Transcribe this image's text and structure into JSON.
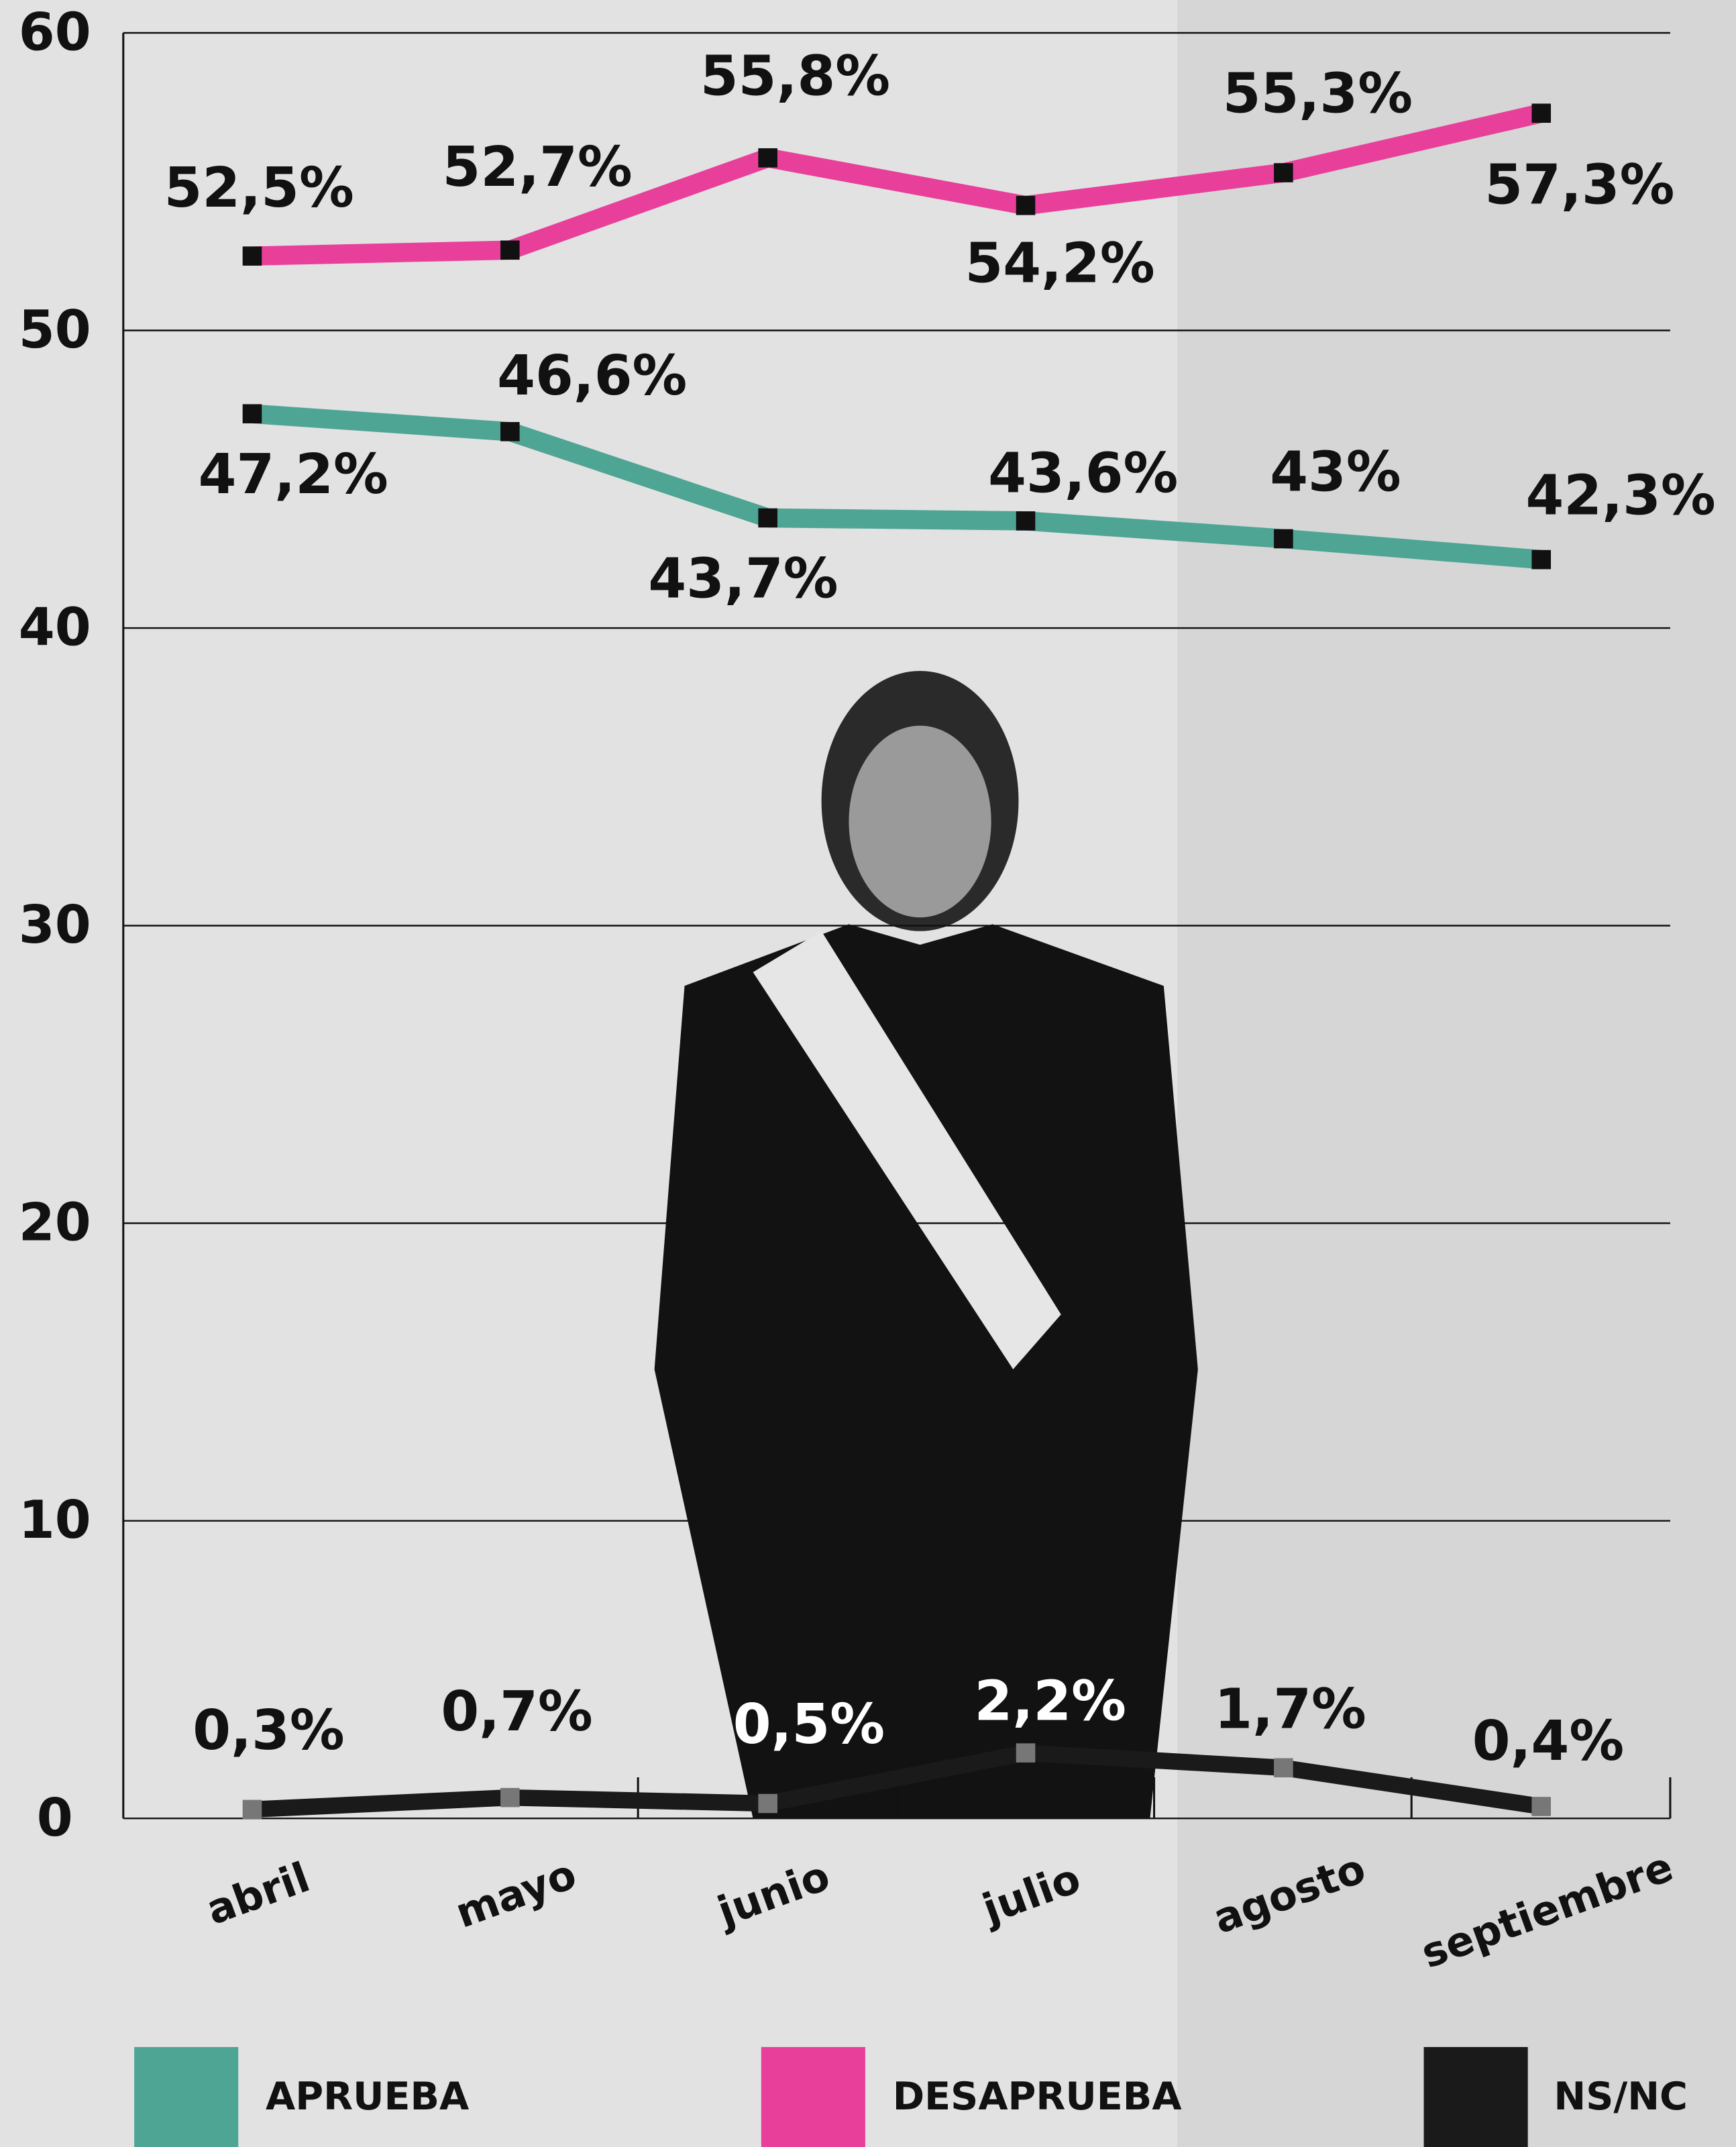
{
  "chart_data": {
    "type": "line",
    "categories": [
      "abril",
      "mayo",
      "junio",
      "julio",
      "agosto",
      "septiembre"
    ],
    "series": [
      {
        "name": "APRUEBA",
        "color": "#4ea594",
        "values": [
          47.2,
          46.6,
          43.7,
          43.6,
          43,
          42.3
        ],
        "value_labels": [
          "47,2%",
          "46,6%",
          "43,7%",
          "43,6%",
          "43%",
          "42,3%"
        ]
      },
      {
        "name": "DESAPRUEBA",
        "color": "#e8409a",
        "values": [
          52.5,
          52.7,
          55.8,
          54.2,
          55.3,
          57.3
        ],
        "value_labels": [
          "52,5%",
          "52,7%",
          "55,8%",
          "54,2%",
          "55,3%",
          "57,3%"
        ]
      },
      {
        "name": "NS/NC",
        "color": "#1a1a1a",
        "values": [
          0.3,
          0.7,
          0.5,
          2.2,
          1.7,
          0.4
        ],
        "value_labels": [
          "0,3%",
          "0,7%",
          "0,5%",
          "2,2%",
          "1,7%",
          "0,4%"
        ]
      }
    ],
    "ylim": [
      0,
      60
    ],
    "yticks": [
      0,
      10,
      20,
      30,
      40,
      50,
      60
    ],
    "grid": true
  }
}
